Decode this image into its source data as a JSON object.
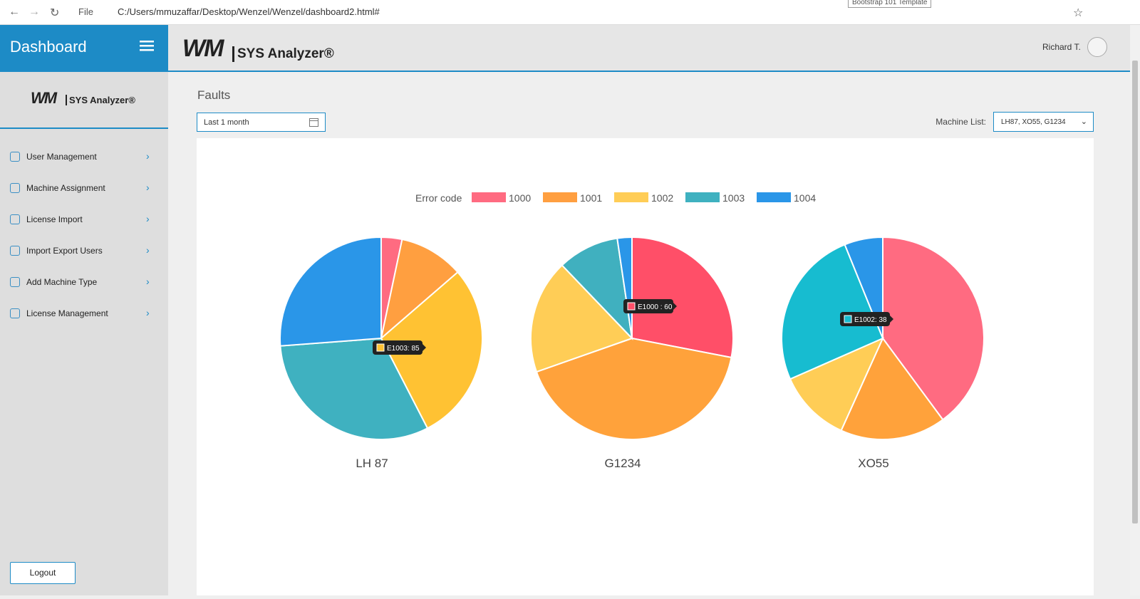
{
  "browser": {
    "address_prefix": "File",
    "url": "C:/Users/mmuzaffar/Desktop/Wenzel/Wenzel/dashboard2.html#",
    "tooltip": "Bootstrap 101 Template"
  },
  "sidebar": {
    "title": "Dashboard",
    "logo_mark": "WM",
    "logo_text": "SYS Analyzer®",
    "menu": [
      "User Management",
      "Machine Assignment",
      "License Import",
      "Import Export Users",
      "Add Machine Type",
      "License Management"
    ],
    "logout": "Logout"
  },
  "header": {
    "logo_mark": "WM",
    "logo_text": "SYS Analyzer®",
    "user": "Richard T."
  },
  "page": {
    "title": "Faults",
    "date_filter": "Last 1 month",
    "machine_list_label": "Machine List:",
    "machine_list_value": "LH87, XO55, G1234"
  },
  "legend": {
    "title": "Error code",
    "categories": [
      "1000",
      "1001",
      "1002",
      "1003",
      "1004"
    ],
    "colors": [
      "#ff6b81",
      "#ff9f40",
      "#ffcd56",
      "#3fb1c0",
      "#2a96e8"
    ]
  },
  "chart_data": [
    {
      "type": "pie",
      "title": "LH 87",
      "values": [
        9,
        28,
        78,
        85,
        71
      ],
      "colors": [
        "#ff6b81",
        "#ff9f40",
        "#ffc233",
        "#3fb1c0",
        "#2a96e8"
      ],
      "tooltip": "E1003: 85",
      "tooltip_color": "#ffc233"
    },
    {
      "type": "pie",
      "title": "G1234",
      "values": [
        60,
        89,
        39,
        21,
        5
      ],
      "colors": [
        "#ff4f68",
        "#ffa23b",
        "#ffcd56",
        "#40b0bf",
        "#2a96e8"
      ],
      "tooltip": "E1000 : 60",
      "tooltip_color": "#ff4f68"
    },
    {
      "type": "pie",
      "title": "XO55",
      "values": [
        130,
        55,
        38,
        83,
        20
      ],
      "colors": [
        "#ff6b81",
        "#ffa23b",
        "#ffcd56",
        "#17bcd0",
        "#2a96e8"
      ],
      "tooltip": "E1002: 38",
      "tooltip_color": "#17bcd0"
    }
  ]
}
